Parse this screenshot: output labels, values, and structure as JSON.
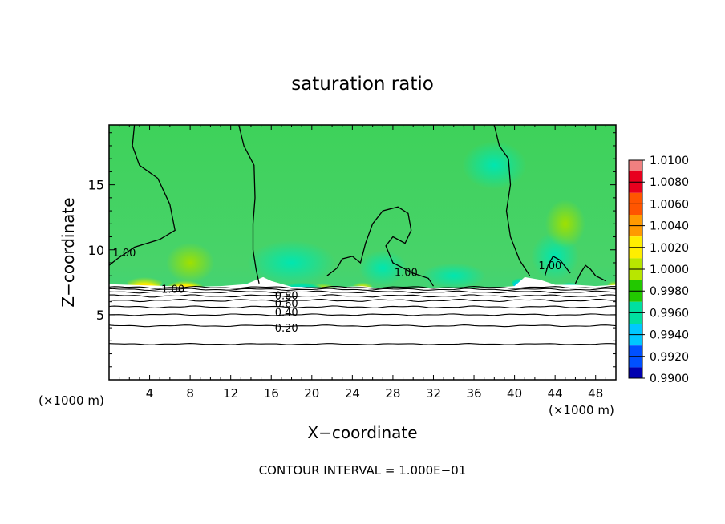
{
  "chart_data": {
    "type": "heatmap",
    "title": "saturation ratio",
    "xlabel": "X−coordinate",
    "ylabel": "Z−coordinate",
    "x_unit_left": "(×1000 m)",
    "x_unit_right": "(×1000 m)",
    "xlim": [
      0,
      50
    ],
    "ylim": [
      0,
      19.6
    ],
    "x_ticks": [
      4,
      8,
      12,
      16,
      20,
      24,
      28,
      32,
      36,
      40,
      44,
      48
    ],
    "y_ticks": [
      5,
      10,
      15
    ],
    "colorbar": {
      "labels": [
        "1.0100",
        "1.0080",
        "1.0060",
        "1.0040",
        "1.0020",
        "1.0000",
        "0.9980",
        "0.9960",
        "0.9940",
        "0.9920",
        "0.9900"
      ],
      "values": [
        1.01,
        1.008,
        1.006,
        1.004,
        1.002,
        1.0,
        0.998,
        0.996,
        0.994,
        0.992,
        0.99
      ],
      "colors": [
        "#f08080",
        "#e8001e",
        "#ff5500",
        "#ff9a00",
        "#ffee00",
        "#b8e600",
        "#22c800",
        "#00e0a0",
        "#00c8ff",
        "#0050ff",
        "#0000b0",
        "#7000a0"
      ]
    },
    "contour_labels": [
      {
        "text": "1.00",
        "x": 1.5,
        "z": 9.8
      },
      {
        "text": "1.00",
        "x": 6.3,
        "z": 7.0
      },
      {
        "text": "1.00",
        "x": 29.3,
        "z": 8.3
      },
      {
        "text": "1.00",
        "x": 43.5,
        "z": 8.8
      },
      {
        "text": "0.80",
        "x": 17.5,
        "z": 6.5
      },
      {
        "text": "0.60",
        "x": 17.5,
        "z": 5.9
      },
      {
        "text": "0.40",
        "x": 17.5,
        "z": 5.2
      },
      {
        "text": "0.20",
        "x": 17.5,
        "z": 4.0
      }
    ],
    "footnote": "CONTOUR INTERVAL = 1.000E−01"
  }
}
